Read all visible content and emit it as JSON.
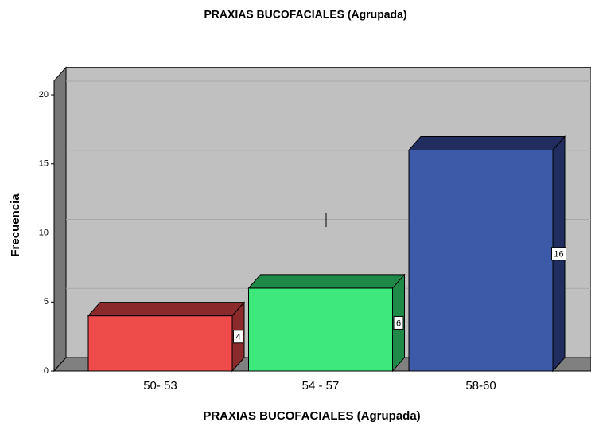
{
  "chart_data": {
    "type": "bar3d",
    "title": "PRAXIAS BUCOFACIALES (Agrupada)",
    "x_label": "PRAXIAS BUCOFACIALES (Agrupada)",
    "y_label": "Frecuencia",
    "categories": [
      "50- 53",
      "54 - 57",
      "58-60"
    ],
    "values": [
      4,
      6,
      16
    ],
    "colors": [
      "#ee4b4b",
      "#3fe87d",
      "#3c5aa8"
    ],
    "side_colors": [
      "#8b2a2a",
      "#1f8a48",
      "#202d5e"
    ],
    "ylim": [
      0,
      21
    ],
    "yticks": [
      0,
      5,
      10,
      15,
      20
    ],
    "grid": true
  }
}
